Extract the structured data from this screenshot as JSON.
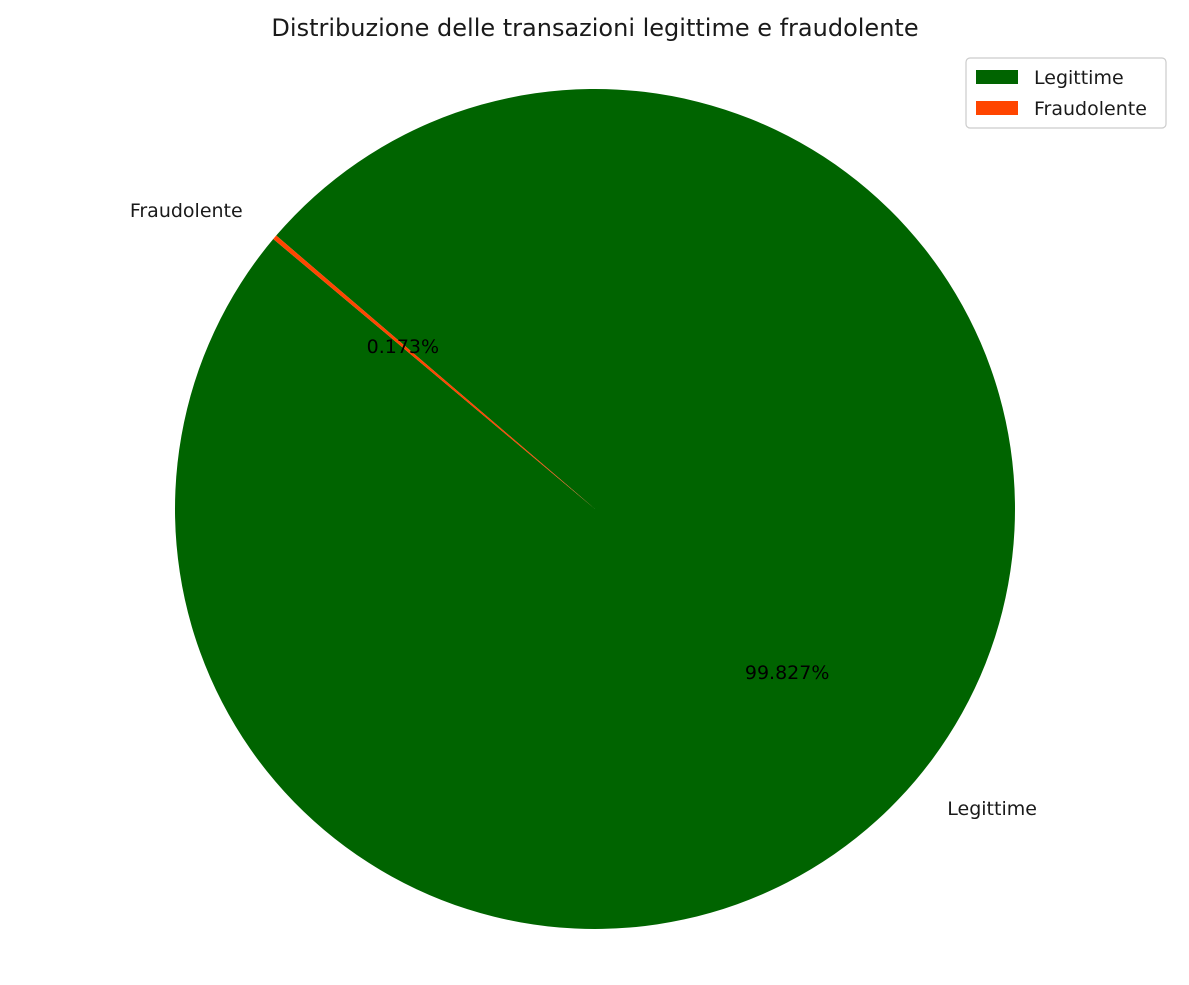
{
  "chart_data": {
    "type": "pie",
    "title": "Distribuzione delle transazioni legittime e fraudolente",
    "slices": [
      {
        "label": "Legittime",
        "value": 99.827,
        "pct_label": "99.827%",
        "color": "#006400"
      },
      {
        "label": "Fraudolente",
        "value": 0.173,
        "pct_label": "0.173%",
        "color": "#ff4500"
      }
    ],
    "legend": {
      "placement": "top-right",
      "entries": [
        "Legittime",
        "Fraudolente"
      ]
    },
    "start_angle_deg": 140,
    "direction": "counterclockwise"
  }
}
